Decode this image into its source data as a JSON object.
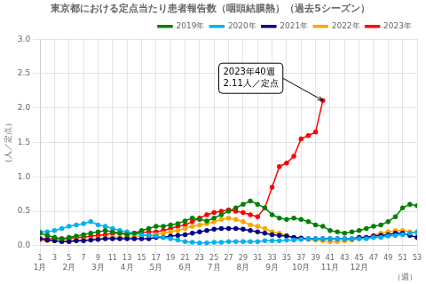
{
  "chart_data": {
    "type": "line",
    "title": "東京都における定点当たり患者報告数（咽頭結膜熱）（過去5シーズン）",
    "ylabel": "（人／定点）",
    "xlabel": "（週）",
    "x": [
      1,
      2,
      3,
      4,
      5,
      6,
      7,
      8,
      9,
      10,
      11,
      12,
      13,
      14,
      15,
      16,
      17,
      18,
      19,
      20,
      21,
      22,
      23,
      24,
      25,
      26,
      27,
      28,
      29,
      30,
      31,
      32,
      33,
      34,
      35,
      36,
      37,
      38,
      39,
      40,
      41,
      42,
      43,
      44,
      45,
      46,
      47,
      48,
      49,
      50,
      51,
      52,
      53
    ],
    "xlim": [
      1,
      53
    ],
    "xticks": [
      1,
      3,
      5,
      7,
      9,
      11,
      13,
      15,
      17,
      19,
      21,
      23,
      25,
      27,
      29,
      31,
      33,
      35,
      37,
      39,
      41,
      43,
      45,
      47,
      49,
      51,
      53
    ],
    "x2lim": [
      1,
      53
    ],
    "x2ticks": [
      {
        "value": 1,
        "label": "1月"
      },
      {
        "value": 5,
        "label": "2月"
      },
      {
        "value": 9,
        "label": "3月"
      },
      {
        "value": 13,
        "label": "4月"
      },
      {
        "value": 17,
        "label": "5月"
      },
      {
        "value": 21,
        "label": "6月"
      },
      {
        "value": 25,
        "label": "7月"
      },
      {
        "value": 29,
        "label": "8月"
      },
      {
        "value": 33,
        "label": "9月"
      },
      {
        "value": 37,
        "label": "10月"
      },
      {
        "value": 41,
        "label": "11月"
      },
      {
        "value": 45,
        "label": "12月"
      }
    ],
    "ylim": [
      0.0,
      3.0
    ],
    "yticks": [
      {
        "value": 0,
        "label": "0.0"
      },
      0.5,
      {
        "value": 1,
        "label": "1.0"
      },
      1.5,
      {
        "value": 2,
        "label": "2.0"
      },
      2.5,
      {
        "value": 3,
        "label": "3.0"
      }
    ],
    "grid": true,
    "legend": "upper right",
    "marker": "circle",
    "series": [
      {
        "name": "2019年",
        "color": "#008000",
        "values": [
          0.18,
          0.15,
          0.12,
          0.1,
          0.12,
          0.14,
          0.16,
          0.18,
          0.2,
          0.22,
          0.2,
          0.18,
          0.16,
          0.18,
          0.22,
          0.25,
          0.28,
          0.28,
          0.3,
          0.32,
          0.36,
          0.4,
          0.38,
          0.36,
          0.4,
          0.45,
          0.5,
          0.55,
          0.6,
          0.65,
          0.6,
          0.55,
          0.45,
          0.4,
          0.38,
          0.4,
          0.38,
          0.35,
          0.3,
          0.28,
          0.22,
          0.2,
          0.18,
          0.2,
          0.22,
          0.25,
          0.28,
          0.3,
          0.35,
          0.42,
          0.55,
          0.6,
          0.58
        ]
      },
      {
        "name": "2020年",
        "color": "#00B0F0",
        "values": [
          0.2,
          0.2,
          0.22,
          0.25,
          0.28,
          0.3,
          0.32,
          0.35,
          0.3,
          0.28,
          0.25,
          0.22,
          0.2,
          0.18,
          0.16,
          0.15,
          0.14,
          0.12,
          0.1,
          0.08,
          0.06,
          0.05,
          0.04,
          0.04,
          0.05,
          0.05,
          0.06,
          0.06,
          0.06,
          0.06,
          0.06,
          0.07,
          0.07,
          0.07,
          0.08,
          0.08,
          0.09,
          0.1,
          0.1,
          0.1,
          0.1,
          0.1,
          0.1,
          0.1,
          0.1,
          0.1,
          0.12,
          0.12,
          0.14,
          0.15,
          0.16,
          0.18,
          0.2
        ]
      },
      {
        "name": "2021年",
        "color": "#00008B",
        "values": [
          0.1,
          0.08,
          0.07,
          0.06,
          0.06,
          0.07,
          0.07,
          0.08,
          0.09,
          0.1,
          0.1,
          0.1,
          0.1,
          0.1,
          0.1,
          0.1,
          0.12,
          0.12,
          0.14,
          0.15,
          0.16,
          0.18,
          0.2,
          0.22,
          0.24,
          0.25,
          0.25,
          0.25,
          0.24,
          0.22,
          0.2,
          0.18,
          0.16,
          0.15,
          0.14,
          0.12,
          0.11,
          0.1,
          0.1,
          0.1,
          0.1,
          0.1,
          0.1,
          0.1,
          0.12,
          0.12,
          0.14,
          0.15,
          0.16,
          0.18,
          0.18,
          0.15,
          0.12
        ]
      },
      {
        "name": "2022年",
        "color": "#FFA500",
        "values": [
          0.08,
          0.07,
          0.07,
          0.07,
          0.07,
          0.08,
          0.08,
          0.09,
          0.1,
          0.11,
          0.12,
          0.12,
          0.12,
          0.13,
          0.14,
          0.15,
          0.16,
          0.18,
          0.2,
          0.22,
          0.25,
          0.28,
          0.3,
          0.32,
          0.35,
          0.38,
          0.4,
          0.38,
          0.35,
          0.3,
          0.28,
          0.25,
          0.2,
          0.18,
          0.15,
          0.12,
          0.1,
          0.09,
          0.08,
          0.07,
          0.06,
          0.06,
          0.07,
          0.08,
          0.1,
          0.12,
          0.15,
          0.18,
          0.2,
          0.22,
          0.22,
          0.2,
          0.18
        ]
      },
      {
        "name": "2023年",
        "color": "#FF0000",
        "values": [
          0.1,
          0.1,
          0.1,
          0.1,
          0.1,
          0.12,
          0.12,
          0.14,
          0.15,
          0.16,
          0.18,
          0.18,
          0.17,
          0.18,
          0.19,
          0.2,
          0.2,
          0.22,
          0.25,
          0.28,
          0.3,
          0.35,
          0.4,
          0.45,
          0.48,
          0.5,
          0.52,
          0.5,
          0.48,
          0.45,
          0.42,
          0.55,
          0.85,
          1.15,
          1.2,
          1.3,
          1.55,
          1.6,
          1.65,
          2.11,
          null,
          null,
          null,
          null,
          null,
          null,
          null,
          null,
          null,
          null,
          null,
          null,
          null
        ]
      }
    ],
    "annotations": [
      {
        "text": "2023年40週\n2.11人／定点",
        "x": 40,
        "y": 2.11
      }
    ]
  }
}
